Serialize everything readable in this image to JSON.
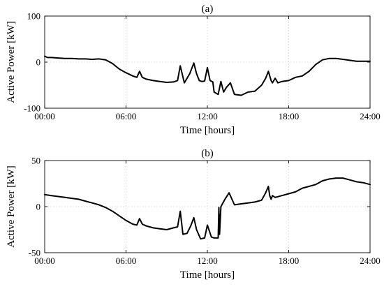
{
  "chart_data": [
    {
      "type": "line",
      "title": "(a)",
      "xlabel": "Time [hours]",
      "ylabel": "Active Power [kW]",
      "xlim": [
        0,
        24
      ],
      "ylim": [
        -100,
        100
      ],
      "x_ticks": [
        0,
        6,
        12,
        18,
        24
      ],
      "x_tick_labels": [
        "00:00",
        "06:00",
        "12:00",
        "18:00",
        "24:00"
      ],
      "y_ticks": [
        -100,
        0,
        100
      ],
      "y_tick_labels": [
        "-100",
        "0",
        "100"
      ],
      "grid": true,
      "line_color": "#000000",
      "series": [
        {
          "x": [
            0,
            0.2,
            0.5,
            1,
            1.5,
            2,
            2.5,
            3,
            3.5,
            4,
            4.5,
            5,
            5.5,
            6,
            6.5,
            6.8,
            7.0,
            7.2,
            7.5,
            8,
            8.5,
            9,
            9.5,
            9.8,
            10.0,
            10.3,
            10.7,
            11.0,
            11.2,
            11.4,
            11.6,
            11.8,
            12.0,
            12.2,
            12.4,
            12.5,
            12.8,
            13.0,
            13.2,
            13.4,
            13.7,
            14.0,
            14.5,
            15,
            15.5,
            16,
            16.3,
            16.5,
            16.7,
            16.8,
            17.0,
            17.2,
            17.5,
            18,
            18.5,
            19,
            19.5,
            20,
            20.5,
            21,
            21.5,
            22,
            22.5,
            23,
            23.5,
            24
          ],
          "y": [
            13,
            10,
            10,
            9,
            8,
            8,
            7,
            7,
            6,
            7,
            5,
            -3,
            -15,
            -23,
            -30,
            -33,
            -20,
            -33,
            -37,
            -40,
            -42,
            -44,
            -43,
            -40,
            -8,
            -45,
            -25,
            -2,
            -25,
            -40,
            -42,
            -41,
            -12,
            -40,
            -43,
            -65,
            -70,
            -42,
            -65,
            -55,
            -45,
            -70,
            -72,
            -65,
            -63,
            -50,
            -35,
            -20,
            -40,
            -45,
            -35,
            -45,
            -42,
            -40,
            -33,
            -30,
            -20,
            -5,
            5,
            8,
            8,
            6,
            4,
            2,
            2,
            2
          ]
        }
      ]
    },
    {
      "type": "line",
      "title": "(b)",
      "xlabel": "Time [hours]",
      "ylabel": "Active Power [kW]",
      "xlim": [
        0,
        24
      ],
      "ylim": [
        -50,
        50
      ],
      "x_ticks": [
        0,
        6,
        12,
        18,
        24
      ],
      "x_tick_labels": [
        "00:00",
        "06:00",
        "12:00",
        "18:00",
        "24:00"
      ],
      "y_ticks": [
        -50,
        0,
        50
      ],
      "y_tick_labels": [
        "-50",
        "0",
        "50"
      ],
      "grid": true,
      "line_color": "#000000",
      "series": [
        {
          "x": [
            0,
            0.5,
            1,
            1.5,
            2,
            2.5,
            3,
            3.5,
            4,
            4.5,
            5,
            5.5,
            6,
            6.5,
            6.8,
            7.0,
            7.2,
            7.5,
            8,
            8.5,
            9,
            9.5,
            9.8,
            10.0,
            10.2,
            10.5,
            10.8,
            11.0,
            11.2,
            11.5,
            11.8,
            12.0,
            12.3,
            12.5,
            12.8,
            12.85,
            12.9,
            13.0,
            13.3,
            13.6,
            14,
            14.5,
            15,
            15.5,
            16,
            16.3,
            16.5,
            16.6,
            16.7,
            16.8,
            17.0,
            17.5,
            18,
            18.5,
            19,
            19.5,
            20,
            20.5,
            21,
            21.5,
            22,
            22.5,
            23,
            23.5,
            24
          ],
          "y": [
            13,
            12,
            11,
            10,
            9,
            8,
            6,
            4,
            2,
            -1,
            -5,
            -10,
            -15,
            -19,
            -20,
            -13,
            -19,
            -21,
            -23,
            -24,
            -25,
            -23,
            -22,
            -5,
            -30,
            -29,
            -20,
            -12,
            -25,
            -35,
            -34,
            -20,
            -33,
            -34,
            -34,
            -1,
            -30,
            0,
            8,
            15,
            2,
            3,
            4,
            5,
            7,
            15,
            22,
            12,
            8,
            12,
            10,
            12,
            14,
            16,
            20,
            22,
            24,
            28,
            30,
            31,
            31,
            29,
            27,
            26,
            24
          ]
        }
      ]
    }
  ]
}
